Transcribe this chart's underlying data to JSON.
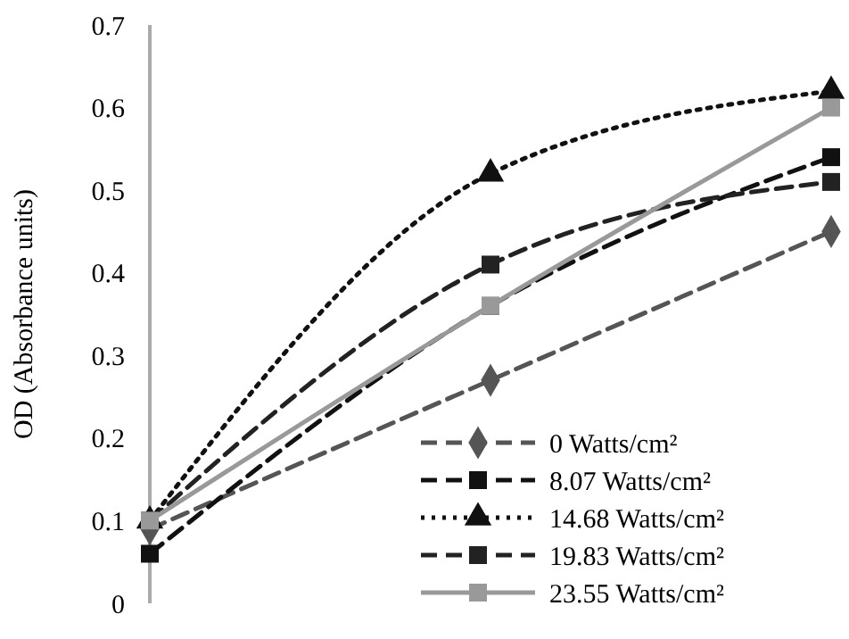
{
  "chart_data": {
    "type": "line",
    "ylabel": "OD (Absorbance units)",
    "categories": [
      null,
      null,
      null
    ],
    "ylim": [
      0,
      0.7
    ],
    "yticks": [
      0,
      0.1,
      0.2,
      0.3,
      0.4,
      0.5,
      0.6,
      0.7
    ],
    "grid": false,
    "legend": "bottom right",
    "series": [
      {
        "name": "0 Watts/cm²",
        "color": "#555555",
        "values": [
          0.09,
          0.27,
          0.45
        ],
        "marker": "diamond",
        "line_style": "dashed"
      },
      {
        "name": "8.07 Watts/cm²",
        "color": "#111111",
        "values": [
          0.06,
          0.36,
          0.54
        ],
        "marker": "square",
        "line_style": "dashed"
      },
      {
        "name": "14.68 Watts/cm²",
        "color": "#111111",
        "values": [
          0.1,
          0.52,
          0.62
        ],
        "marker": "triangle",
        "line_style": "dotted"
      },
      {
        "name": "19.83 Watts/cm²",
        "color": "#222222",
        "values": [
          0.1,
          0.41,
          0.51
        ],
        "marker": "square",
        "line_style": "dashed"
      },
      {
        "name": "23.55 Watts/cm²",
        "color": "#999999",
        "values": [
          0.1,
          0.36,
          0.6
        ],
        "marker": "square",
        "line_style": "solid"
      }
    ]
  }
}
